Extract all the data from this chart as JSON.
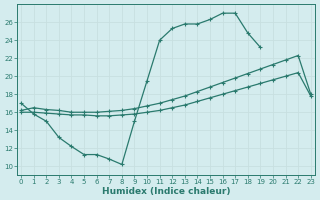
{
  "xlabel": "Humidex (Indice chaleur)",
  "bg_color": "#d4ecee",
  "line_color": "#2a7a6e",
  "grid_color": "#c8dfe0",
  "xlim": [
    -0.3,
    23.3
  ],
  "ylim": [
    9,
    28
  ],
  "xticks": [
    0,
    1,
    2,
    3,
    4,
    5,
    6,
    7,
    8,
    9,
    10,
    11,
    12,
    13,
    14,
    15,
    16,
    17,
    18,
    19,
    20,
    21,
    22,
    23
  ],
  "yticks": [
    10,
    12,
    14,
    16,
    18,
    20,
    22,
    24,
    26
  ],
  "line1_x": [
    0,
    1,
    2,
    3,
    4,
    5,
    6,
    7,
    8,
    9,
    10,
    11,
    12,
    13,
    14,
    15,
    16,
    17,
    18,
    19,
    20,
    21,
    22,
    23
  ],
  "line1_y": [
    17.0,
    15.8,
    15.0,
    13.2,
    12.2,
    11.3,
    11.3,
    10.8,
    10.2,
    15.0,
    19.5,
    24.0,
    25.3,
    25.8,
    25.8,
    26.3,
    27.0,
    27.0,
    24.8,
    23.2,
    null,
    null,
    null,
    null
  ],
  "line1_has_gap": true,
  "line2_x": [
    0,
    1,
    2,
    3,
    4,
    5,
    6,
    7,
    8,
    9,
    10,
    11,
    12,
    13,
    14,
    15,
    16,
    17,
    18,
    19,
    20,
    21,
    22,
    23
  ],
  "line2_y": [
    16.2,
    16.5,
    16.3,
    16.2,
    16.0,
    16.0,
    16.0,
    16.1,
    16.2,
    16.4,
    16.7,
    17.0,
    17.4,
    17.8,
    18.3,
    18.8,
    19.3,
    19.8,
    20.3,
    20.8,
    21.3,
    21.8,
    22.3,
    18.0
  ],
  "line3_x": [
    0,
    1,
    2,
    3,
    4,
    5,
    6,
    7,
    8,
    9,
    10,
    11,
    12,
    13,
    14,
    15,
    16,
    17,
    18,
    19,
    20,
    21,
    22,
    23
  ],
  "line3_y": [
    16.0,
    16.0,
    15.9,
    15.8,
    15.7,
    15.7,
    15.6,
    15.6,
    15.7,
    15.8,
    16.0,
    16.2,
    16.5,
    16.8,
    17.2,
    17.6,
    18.0,
    18.4,
    18.8,
    19.2,
    19.6,
    20.0,
    20.4,
    17.8
  ]
}
